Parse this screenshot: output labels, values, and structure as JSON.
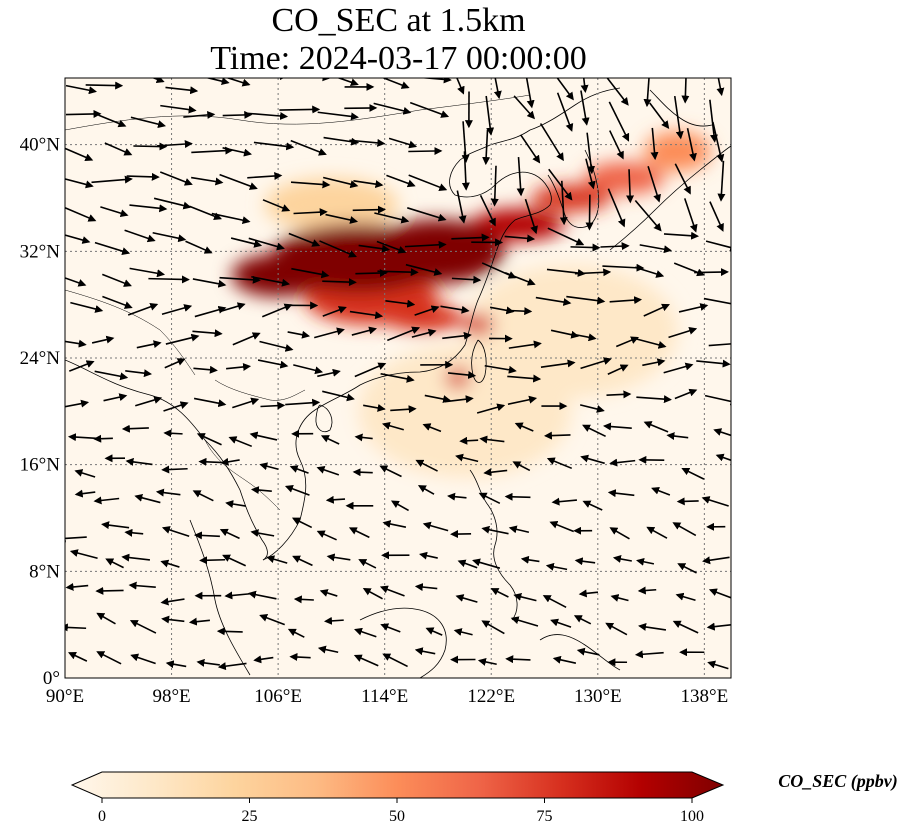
{
  "title": {
    "line1": "CO_SEC at 1.5km",
    "line2": "Time: 2024-03-17 00:00:00"
  },
  "map": {
    "lon_range": [
      90,
      140
    ],
    "lat_range": [
      0,
      45
    ],
    "lon_ticks": [
      90,
      98,
      106,
      114,
      122,
      130,
      138
    ],
    "lon_tick_labels": [
      "90°E",
      "98°E",
      "106°E",
      "114°E",
      "122°E",
      "130°E",
      "138°E"
    ],
    "lat_ticks": [
      0,
      8,
      16,
      24,
      32,
      40
    ],
    "lat_tick_labels": [
      "0°",
      "8°N",
      "16°N",
      "24°N",
      "32°N",
      "40°N"
    ],
    "gridlines": true,
    "colormap": "OrRd",
    "field_blobs": [
      {
        "lon": 112,
        "lat": 31.5,
        "rlon": 6.5,
        "rlat": 2.6,
        "value": 100
      },
      {
        "lon": 118,
        "lat": 32.0,
        "rlon": 5.0,
        "rlat": 2.4,
        "value": 100
      },
      {
        "lon": 106,
        "lat": 30.2,
        "rlon": 3.5,
        "rlat": 1.6,
        "value": 95
      },
      {
        "lon": 124,
        "lat": 34.0,
        "rlon": 3.5,
        "rlat": 1.2,
        "value": 85
      },
      {
        "lon": 128,
        "lat": 36.0,
        "rlon": 3.0,
        "rlat": 1.0,
        "value": 70
      },
      {
        "lon": 132,
        "lat": 37.5,
        "rlon": 3.0,
        "rlat": 1.2,
        "value": 60
      },
      {
        "lon": 136,
        "lat": 39.5,
        "rlon": 2.5,
        "rlat": 1.5,
        "value": 45
      },
      {
        "lon": 117,
        "lat": 27.0,
        "rlon": 3.0,
        "rlat": 1.0,
        "value": 70
      },
      {
        "lon": 121,
        "lat": 26.5,
        "rlon": 1.2,
        "rlat": 0.8,
        "value": 80
      },
      {
        "lon": 119.5,
        "lat": 22.5,
        "rlon": 0.9,
        "rlat": 0.8,
        "value": 70
      },
      {
        "lon": 113,
        "lat": 28.5,
        "rlon": 5.0,
        "rlat": 2.0,
        "value": 75
      },
      {
        "lon": 110,
        "lat": 35.5,
        "rlon": 5.0,
        "rlat": 2.0,
        "value": 25
      },
      {
        "lon": 120,
        "lat": 20.0,
        "rlon": 8.0,
        "rlat": 5.0,
        "value": 15
      },
      {
        "lon": 128,
        "lat": 26.0,
        "rlon": 8.0,
        "rlat": 5.0,
        "value": 12
      },
      {
        "lon": 106,
        "lat": 14.0,
        "rlon": 14.0,
        "rlat": 8.0,
        "value": 5
      }
    ]
  },
  "colorbar": {
    "min": 0,
    "max": 100,
    "ticks": [
      0,
      25,
      50,
      75,
      100
    ],
    "tick_labels": [
      "0",
      "25",
      "50",
      "75",
      "100"
    ],
    "label": "CO_SEC (ppbv)",
    "colors": [
      "#fff7ec",
      "#fee8c8",
      "#fdd49e",
      "#fdbb84",
      "#fc8d59",
      "#ef6548",
      "#d7301f",
      "#b30000",
      "#7f0000"
    ]
  }
}
